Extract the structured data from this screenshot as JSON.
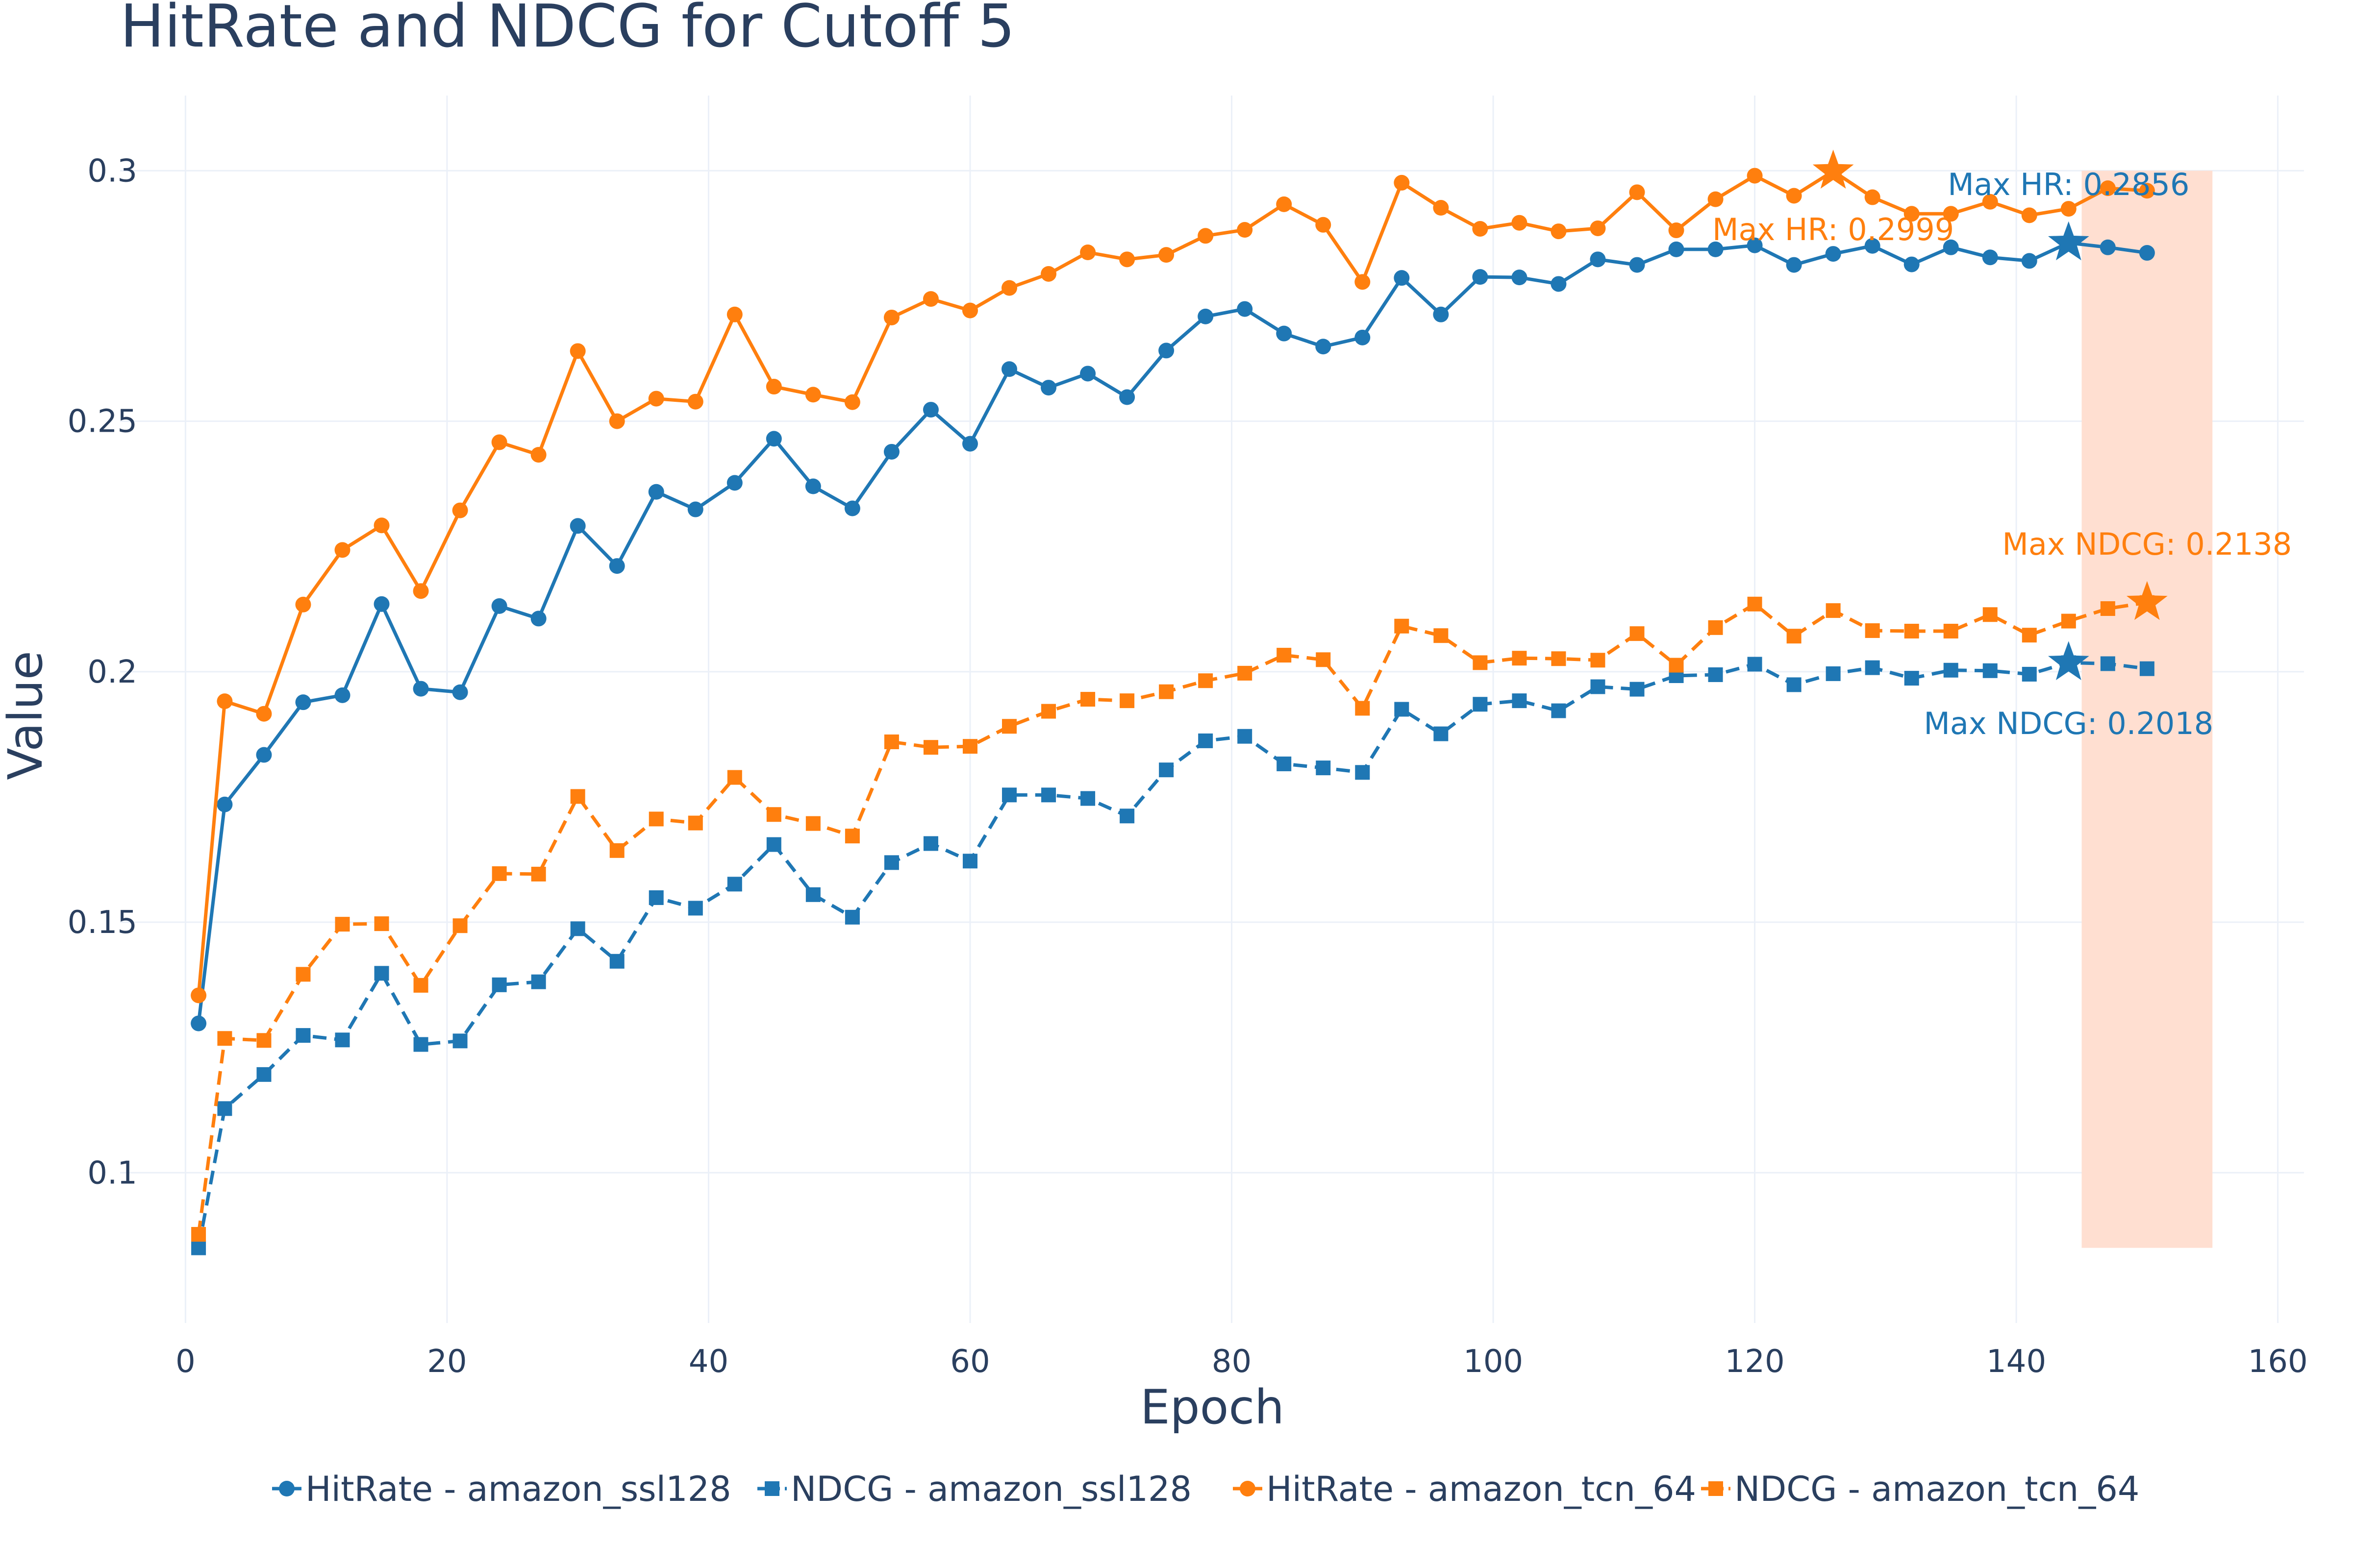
{
  "chart_data": {
    "type": "line",
    "title": "HitRate and NDCG for Cutoff 5",
    "xlabel": "Epoch",
    "ylabel": "Value",
    "xlim": [
      -5,
      162
    ],
    "ylim": [
      0.07,
      0.315
    ],
    "x_ticks": [
      0,
      20,
      40,
      60,
      80,
      100,
      120,
      140,
      160
    ],
    "x_tick_labels": [
      "0",
      "20",
      "40",
      "60",
      "80",
      "100",
      "120",
      "140",
      "160"
    ],
    "y_ticks": [
      0.1,
      0.15,
      0.2,
      0.25,
      0.3
    ],
    "y_tick_labels": [
      "0.1",
      "0.15",
      "0.2",
      "0.25",
      "0.3"
    ],
    "grid": true,
    "legend_position": "bottom",
    "x": [
      1,
      3,
      6,
      9,
      12,
      15,
      18,
      21,
      24,
      27,
      30,
      33,
      36,
      39,
      42,
      45,
      48,
      51,
      54,
      57,
      60,
      63,
      66,
      69,
      72,
      75,
      78,
      81,
      84,
      87,
      90,
      93,
      96,
      99,
      102,
      105,
      108,
      111,
      114,
      117,
      120,
      123,
      126,
      129,
      132,
      135,
      138,
      141,
      144,
      147,
      150
    ],
    "series": [
      {
        "name": "HitRate - amazon_ssl128",
        "color": "#1f77b4",
        "dash": "solid",
        "marker": "circle",
        "values": [
          0.1298,
          0.1735,
          0.1834,
          0.1939,
          0.1953,
          0.2135,
          0.1966,
          0.1959,
          0.2131,
          0.2106,
          0.2291,
          0.2211,
          0.2359,
          0.2324,
          0.2377,
          0.2465,
          0.237,
          0.2326,
          0.2439,
          0.2523,
          0.2455,
          0.2604,
          0.2567,
          0.2595,
          0.2548,
          0.2641,
          0.2709,
          0.2724,
          0.2675,
          0.2649,
          0.2667,
          0.2786,
          0.2713,
          0.2788,
          0.2787,
          0.2774,
          0.2823,
          0.2812,
          0.2843,
          0.2843,
          0.2851,
          0.2812,
          0.2834,
          0.285,
          0.2813,
          0.2847,
          0.2827,
          0.282,
          0.2856,
          0.2847,
          0.2836
        ]
      },
      {
        "name": "NDCG - amazon_ssl128",
        "color": "#1f77b4",
        "dash": "dash",
        "marker": "square",
        "values": [
          0.085,
          0.1128,
          0.1196,
          0.1274,
          0.1265,
          0.1398,
          0.1256,
          0.1263,
          0.1375,
          0.1381,
          0.1487,
          0.1422,
          0.1549,
          0.1528,
          0.1576,
          0.1655,
          0.1555,
          0.151,
          0.1619,
          0.1657,
          0.1622,
          0.1754,
          0.1754,
          0.1747,
          0.1712,
          0.1804,
          0.1862,
          0.1871,
          0.1816,
          0.1808,
          0.1799,
          0.1925,
          0.1876,
          0.1935,
          0.1942,
          0.1922,
          0.197,
          0.1965,
          0.1992,
          0.1994,
          0.2015,
          0.1974,
          0.1996,
          0.2008,
          0.1987,
          0.2003,
          0.2002,
          0.1995,
          0.2018,
          0.2016,
          0.2006
        ]
      },
      {
        "name": "HitRate - amazon_tcn_64",
        "color": "#ff7f0e",
        "dash": "solid",
        "marker": "circle",
        "values": [
          0.1354,
          0.1941,
          0.1916,
          0.2134,
          0.2243,
          0.2292,
          0.2161,
          0.2322,
          0.2458,
          0.2433,
          0.264,
          0.25,
          0.2545,
          0.2539,
          0.2713,
          0.2569,
          0.2553,
          0.2538,
          0.2707,
          0.2744,
          0.2721,
          0.2766,
          0.2794,
          0.2837,
          0.2823,
          0.2832,
          0.287,
          0.2882,
          0.2933,
          0.2892,
          0.2778,
          0.2976,
          0.2926,
          0.2884,
          0.2896,
          0.2879,
          0.2885,
          0.2957,
          0.2881,
          0.2943,
          0.299,
          0.295,
          0.2999,
          0.2947,
          0.2914,
          0.2914,
          0.2938,
          0.2911,
          0.2924,
          0.2965,
          0.296
        ]
      },
      {
        "name": "NDCG - amazon_tcn_64",
        "color": "#ff7f0e",
        "dash": "dash",
        "marker": "square",
        "values": [
          0.0877,
          0.1268,
          0.1264,
          0.1396,
          0.1496,
          0.1497,
          0.1374,
          0.1493,
          0.1597,
          0.1596,
          0.1751,
          0.1643,
          0.1706,
          0.1698,
          0.1789,
          0.1715,
          0.1697,
          0.1672,
          0.186,
          0.1849,
          0.1851,
          0.1891,
          0.1921,
          0.1945,
          0.1942,
          0.196,
          0.1982,
          0.1997,
          0.2033,
          0.2024,
          0.1927,
          0.2091,
          0.2072,
          0.2018,
          0.2027,
          0.2026,
          0.2023,
          0.2076,
          0.2013,
          0.2088,
          0.2135,
          0.2071,
          0.2122,
          0.2082,
          0.2081,
          0.2081,
          0.2114,
          0.2073,
          0.2101,
          0.2126,
          0.2138
        ]
      }
    ],
    "max_markers": [
      {
        "series": 0,
        "x": 144,
        "y": 0.2856
      },
      {
        "series": 1,
        "x": 144,
        "y": 0.2018
      },
      {
        "series": 2,
        "x": 126,
        "y": 0.2999
      },
      {
        "series": 3,
        "x": 150,
        "y": 0.2138
      }
    ],
    "annotations": [
      {
        "text": "Max HR: 0.2856",
        "x": 144,
        "y": 0.2971,
        "color": "#1f77b4"
      },
      {
        "text": "Max HR: 0.2999",
        "x": 126,
        "y": 0.2881,
        "color": "#ff7f0e"
      },
      {
        "text": "Max NDCG: 0.2138",
        "x": 150,
        "y": 0.2253,
        "color": "#ff7f0e"
      },
      {
        "text": "Max NDCG: 0.2018",
        "x": 144,
        "y": 0.1895,
        "color": "#1f77b4"
      }
    ],
    "highlight_region": {
      "x0": 145,
      "x1": 155,
      "y0": 0.085,
      "y1": 0.3,
      "color": "#ffdfd1"
    }
  }
}
